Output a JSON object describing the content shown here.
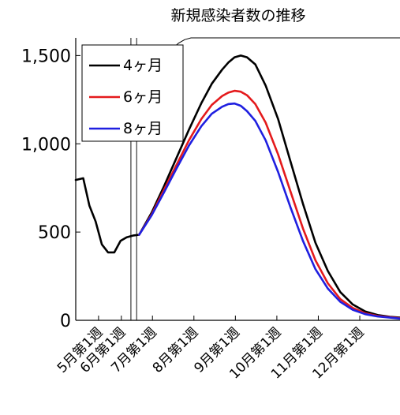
{
  "chart_data": {
    "type": "line",
    "title": "新規感染者数の推移",
    "xlabel": "",
    "ylabel": "",
    "x_range": [
      -0.1,
      7.72
    ],
    "ylim": [
      0,
      1600
    ],
    "y_ticks": [
      0,
      500,
      1000,
      1500
    ],
    "y_tick_labels": [
      "0",
      "500",
      "1,000",
      "1,500"
    ],
    "x_ticks": [
      0.45,
      1.0,
      1.75,
      2.75,
      3.75,
      4.75,
      5.75,
      6.75
    ],
    "x_tick_labels": [
      "5月第1週",
      "6月第1週",
      "7月第1週",
      "8月第1週",
      "9月第1週",
      "10月第1週",
      "11月第1週",
      "12月第1週"
    ],
    "vertical_lines": [
      1.23,
      1.37
    ],
    "grid": false,
    "legend_position": "top-left",
    "series": [
      {
        "name": "",
        "color": "#000000",
        "x": [
          -0.1,
          0.08,
          0.23,
          0.38,
          0.53,
          0.68,
          0.83,
          0.98,
          1.13,
          1.28,
          1.43
        ],
        "values": [
          795,
          805,
          650,
          560,
          430,
          385,
          385,
          450,
          470,
          480,
          485
        ]
      },
      {
        "name": "4ヶ月",
        "color": "#000000",
        "x": [
          1.43,
          1.73,
          2.03,
          2.33,
          2.63,
          2.93,
          3.18,
          3.43,
          3.58,
          3.73,
          3.88,
          4.03,
          4.23,
          4.48,
          4.78,
          5.08,
          5.38,
          5.68,
          5.98,
          6.28,
          6.58,
          6.88,
          7.18,
          7.48,
          7.72
        ],
        "values": [
          485,
          610,
          760,
          920,
          1080,
          1230,
          1340,
          1420,
          1460,
          1490,
          1500,
          1490,
          1450,
          1330,
          1140,
          900,
          660,
          440,
          280,
          160,
          90,
          50,
          30,
          20,
          15
        ]
      },
      {
        "name": "6ヶ月",
        "color": "#e41a1c",
        "x": [
          1.43,
          1.73,
          2.03,
          2.33,
          2.63,
          2.93,
          3.18,
          3.43,
          3.58,
          3.73,
          3.88,
          4.03,
          4.23,
          4.48,
          4.78,
          5.08,
          5.38,
          5.68,
          5.98,
          6.28,
          6.58,
          6.88,
          7.18,
          7.48,
          7.72
        ],
        "values": [
          485,
          600,
          740,
          880,
          1020,
          1140,
          1220,
          1270,
          1290,
          1300,
          1295,
          1275,
          1225,
          1120,
          940,
          730,
          520,
          340,
          210,
          120,
          70,
          40,
          25,
          18,
          12
        ]
      },
      {
        "name": "8ヶ月",
        "color": "#1f1fe0",
        "x": [
          1.43,
          1.73,
          2.03,
          2.33,
          2.63,
          2.93,
          3.18,
          3.43,
          3.58,
          3.73,
          3.88,
          4.03,
          4.23,
          4.48,
          4.78,
          5.08,
          5.38,
          5.68,
          5.98,
          6.28,
          6.58,
          6.88,
          7.18,
          7.48,
          7.72
        ],
        "values": [
          485,
          595,
          725,
          860,
          990,
          1100,
          1170,
          1210,
          1225,
          1228,
          1215,
          1185,
          1130,
          1020,
          840,
          640,
          450,
          290,
          180,
          105,
          60,
          35,
          22,
          15,
          10
        ]
      },
      {
        "name": "",
        "color": "#000000",
        "x": [
          1.37,
          1.48,
          1.63,
          1.78,
          1.93,
          2.08,
          2.23,
          2.38,
          2.53,
          2.68,
          2.9,
          3.2,
          3.6,
          4.2,
          5.0,
          6.0,
          7.0,
          7.72
        ],
        "values": [
          1240,
          1290,
          1360,
          1420,
          1460,
          1500,
          1540,
          1570,
          1590,
          1605,
          1620,
          1635,
          1645,
          1655,
          1665,
          1672,
          1676,
          1678
        ]
      }
    ]
  }
}
